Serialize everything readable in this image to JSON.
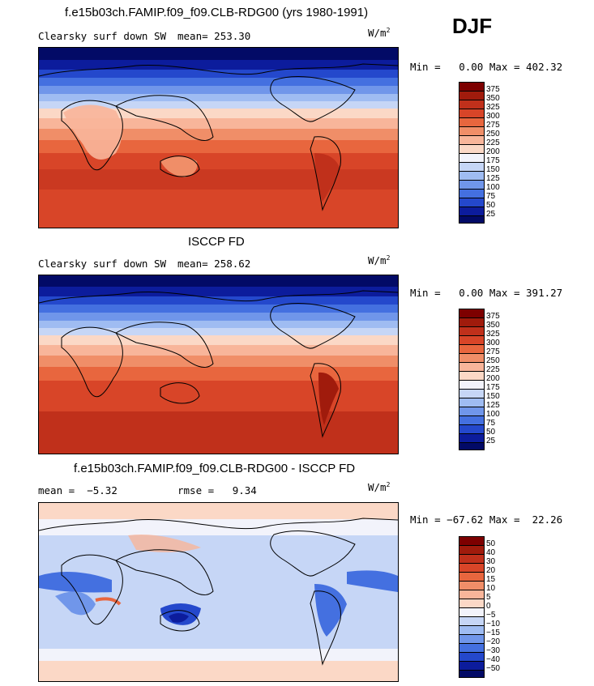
{
  "season": "DJF",
  "units_base": "W/m",
  "units_exp": "2",
  "chart_data": [
    {
      "type": "heatmap",
      "title": "f.e15b03ch.FAMIP.f09_f09.CLB-RDG00 (yrs 1980-1991)",
      "variable": "Clearsky surf down SW",
      "mean_label": "mean=",
      "mean": "253.30",
      "min_label": "Min =",
      "min": "0.00",
      "max_label": "Max =",
      "max": "402.32",
      "levels": [
        375,
        350,
        325,
        300,
        275,
        250,
        225,
        200,
        175,
        150,
        125,
        100,
        75,
        50,
        25
      ],
      "colors": [
        "#7d0000",
        "#a01b0c",
        "#c0301b",
        "#d84528",
        "#e8663e",
        "#f08e68",
        "#f8b59a",
        "#fbd8c6",
        "#f2f3fb",
        "#c6d6f6",
        "#9fbcf2",
        "#7096ea",
        "#4470e0",
        "#2448cc",
        "#0c1c9c",
        "#020a66"
      ]
    },
    {
      "type": "heatmap",
      "title": "ISCCP FD",
      "variable": "Clearsky surf down SW",
      "mean_label": "mean=",
      "mean": "258.62",
      "min_label": "Min =",
      "min": "0.00",
      "max_label": "Max =",
      "max": "391.27",
      "levels": [
        375,
        350,
        325,
        300,
        275,
        250,
        225,
        200,
        175,
        150,
        125,
        100,
        75,
        50,
        25
      ],
      "colors": [
        "#7d0000",
        "#a01b0c",
        "#c0301b",
        "#d84528",
        "#e8663e",
        "#f08e68",
        "#f8b59a",
        "#fbd8c6",
        "#f2f3fb",
        "#c6d6f6",
        "#9fbcf2",
        "#7096ea",
        "#4470e0",
        "#2448cc",
        "#0c1c9c",
        "#020a66"
      ]
    },
    {
      "type": "heatmap",
      "title": "f.e15b03ch.FAMIP.f09_f09.CLB-RDG00 - ISCCP FD",
      "mean_label": "mean =",
      "mean": "-5.32",
      "rmse_label": "rmse =",
      "rmse": "9.34",
      "min_label": "Min =",
      "min": "-67.62",
      "max_label": "Max =",
      "max": "22.26",
      "levels": [
        50,
        40,
        30,
        20,
        15,
        10,
        5,
        0,
        -5,
        -10,
        -15,
        -20,
        -30,
        -40,
        -50
      ],
      "colors": [
        "#7d0000",
        "#a01b0c",
        "#c0301b",
        "#d84528",
        "#e8663e",
        "#f08e68",
        "#f8b59a",
        "#fbd8c6",
        "#f2f3fb",
        "#c6d6f6",
        "#9fbcf2",
        "#7096ea",
        "#4470e0",
        "#2448cc",
        "#0c1c9c",
        "#020a66"
      ]
    }
  ]
}
